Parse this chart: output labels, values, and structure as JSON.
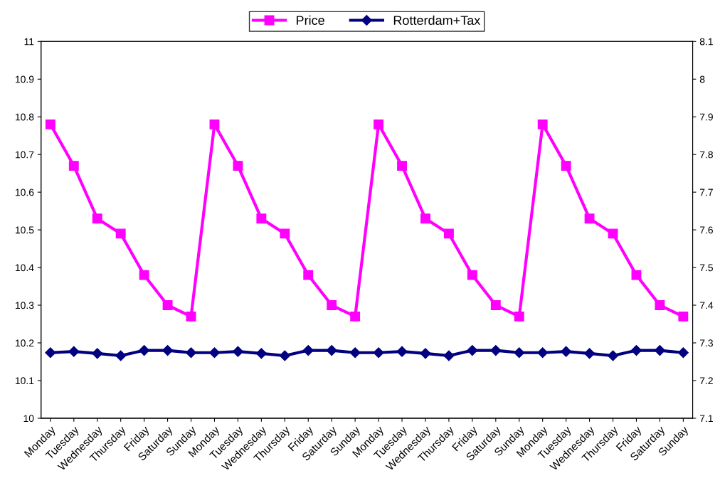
{
  "chart_data": {
    "type": "line",
    "categories": [
      "Monday",
      "Tuesday",
      "Wednesday",
      "Thursday",
      "Friday",
      "Saturday",
      "Sunday",
      "Monday",
      "Tuesday",
      "Wednesday",
      "Thursday",
      "Friday",
      "Saturday",
      "Sunday",
      "Monday",
      "Tuesday",
      "Wednesday",
      "Thursday",
      "Friday",
      "Saturday",
      "Sunday",
      "Monday",
      "Tuesday",
      "Wednesday",
      "Thursday",
      "Friday",
      "Saturday",
      "Sunday"
    ],
    "series": [
      {
        "name": "Price",
        "color": "#ff00ff",
        "marker": "square",
        "values": [
          10.78,
          10.67,
          10.53,
          10.49,
          10.38,
          10.3,
          10.27,
          10.78,
          10.67,
          10.53,
          10.49,
          10.38,
          10.3,
          10.27,
          10.78,
          10.67,
          10.53,
          10.49,
          10.38,
          10.3,
          10.27,
          10.78,
          10.67,
          10.53,
          10.49,
          10.38,
          10.3,
          10.27
        ]
      },
      {
        "name": "Rotterdam+Tax",
        "color": "#000080",
        "marker": "diamond",
        "axis": "y2",
        "values": [
          7.274,
          7.277,
          7.272,
          7.266,
          7.28,
          7.28,
          7.274,
          7.274,
          7.277,
          7.272,
          7.266,
          7.28,
          7.28,
          7.274,
          7.274,
          7.277,
          7.272,
          7.266,
          7.28,
          7.28,
          7.274,
          7.274,
          7.277,
          7.272,
          7.266,
          7.28,
          7.28,
          7.274
        ]
      }
    ],
    "ylim": [
      10,
      11
    ],
    "yticks": [
      10,
      10.1,
      10.2,
      10.3,
      10.4,
      10.5,
      10.6,
      10.7,
      10.8,
      10.9,
      11
    ],
    "y2lim": [
      7.1,
      8.1
    ],
    "y2ticks": [
      7.1,
      7.2,
      7.3,
      7.4,
      7.5,
      7.6,
      7.7,
      7.8,
      7.9,
      8,
      8.1
    ],
    "grid": false,
    "legend": "top",
    "line_style": "solid"
  }
}
